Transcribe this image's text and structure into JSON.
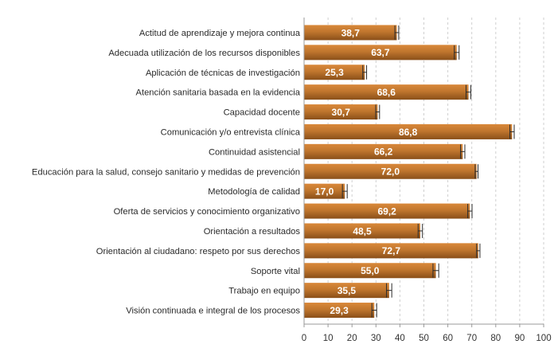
{
  "chart_data": {
    "type": "bar",
    "orientation": "horizontal",
    "title": "",
    "xlabel": "",
    "ylabel": "",
    "xlim": [
      0,
      100
    ],
    "ticks": [
      0,
      10,
      20,
      30,
      40,
      50,
      60,
      70,
      80,
      90,
      100
    ],
    "grid": "vertical-dashed",
    "legend": "none",
    "error_bars": true,
    "colors": {
      "bar_light": "#d9883a",
      "bar_mid": "#c0762e",
      "bar_dark": "#8a4f19",
      "grid": "#cfcfcf",
      "axis": "#9a9a9a",
      "error_bar": "#2b2b2b"
    },
    "categories": [
      "Actitud de aprendizaje y mejora continua",
      "Adecuada utilización de los recursos disponibles",
      "Aplicación de técnicas de investigación",
      "Atención sanitaria basada en la evidencia",
      "Capacidad docente",
      "Comunicación y/o entrevista clínica",
      "Continuidad asistencial",
      "Educación para la salud, consejo sanitario y medidas de prevención",
      "Metodología de calidad",
      "Oferta de servicios y conocimiento organizativo",
      "Orientación a resultados",
      "Orientación al ciudadano: respeto por sus derechos",
      "Soporte vital",
      "Trabajo en equipo",
      "Visión continuada e integral de los procesos"
    ],
    "values": [
      38.7,
      63.7,
      25.3,
      68.6,
      30.7,
      86.8,
      66.2,
      72.0,
      17.0,
      69.2,
      48.5,
      72.7,
      55.0,
      35.5,
      29.3
    ],
    "value_labels": [
      "38,7",
      "63,7",
      "25,3",
      "68,6",
      "30,7",
      "86,8",
      "66,2",
      "72,0",
      "17,0",
      "69,2",
      "48,5",
      "72,7",
      "55,0",
      "35,5",
      "29,3"
    ],
    "error_margins": [
      0.8,
      1.0,
      0.8,
      1.0,
      0.8,
      0.9,
      0.9,
      0.6,
      1.0,
      0.9,
      0.9,
      0.7,
      1.2,
      1.1,
      1.0
    ]
  }
}
